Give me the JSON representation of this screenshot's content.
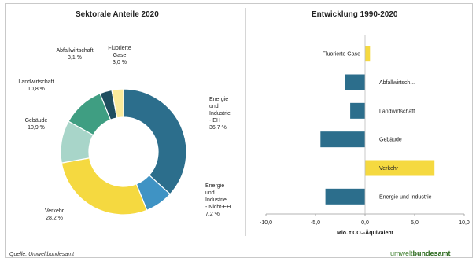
{
  "chart_data": [
    {
      "type": "pie",
      "title": "Sektorale Anteile 2020",
      "slices": [
        {
          "label": "Energie und Industrie - EH",
          "value_label": "36,7 %",
          "value": 36.7,
          "color": "#2c6e8c"
        },
        {
          "label": "Energie und Industrie - Nicht-EH",
          "value_label": "7,2 %",
          "value": 7.2,
          "color": "#3f93c4"
        },
        {
          "label": "Verkehr",
          "value_label": "28,2 %",
          "value": 28.2,
          "color": "#f5d940"
        },
        {
          "label": "Gebäude",
          "value_label": "10,9 %",
          "value": 10.9,
          "color": "#a8d5c9"
        },
        {
          "label": "Landwirtschaft",
          "value_label": "10,8 %",
          "value": 10.8,
          "color": "#3f9e82"
        },
        {
          "label": "Abfallwirtschaft",
          "value_label": "3,1 %",
          "value": 3.1,
          "color": "#1f4e5f"
        },
        {
          "label": "Fluorierte Gase",
          "value_label": "3,0 %",
          "value": 3.0,
          "color": "#faeb9b"
        }
      ]
    },
    {
      "type": "bar",
      "orientation": "horizontal",
      "title": "Entwicklung 1990-2020",
      "xlabel": "Mio. t CO₂-Äquivalent",
      "xlim": [
        -10,
        10
      ],
      "xticks": [
        -10,
        -5,
        0,
        5,
        10
      ],
      "xtick_labels": [
        "-10,0",
        "-5,0",
        "0,0",
        "5,0",
        "10,0"
      ],
      "grid": false,
      "categories": [
        "Fluorierte Gase",
        "Abfallwirtsch...",
        "Landwirtschaft",
        "Gebäude",
        "Verkehr",
        "Energie und Industrie"
      ],
      "values": [
        0.5,
        -2.0,
        -1.5,
        -4.5,
        7.0,
        -4.0
      ],
      "colors": [
        "#f5d940",
        "#2c6e8c",
        "#2c6e8c",
        "#2c6e8c",
        "#f5d940",
        "#2c6e8c"
      ]
    }
  ],
  "footer": {
    "source": "Quelle: Umweltbundesamt",
    "logo_part1": "umwelt",
    "logo_part2": "bundesamt"
  }
}
